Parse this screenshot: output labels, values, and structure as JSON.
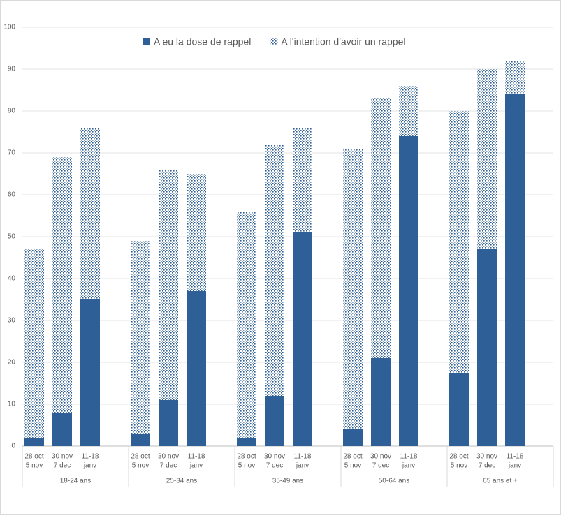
{
  "chart_data": {
    "type": "stacked-bar",
    "groups": [
      "18-24 ans",
      "25-34 ans",
      "35-49 ans",
      "50-64 ans",
      "65 ans et +"
    ],
    "categories": [
      [
        "28 oct",
        "5 nov"
      ],
      [
        "30 nov",
        "7 dec"
      ],
      [
        "11-18",
        "janv"
      ],
      [
        "28 oct",
        "5 nov"
      ],
      [
        "30 nov",
        "7 dec"
      ],
      [
        "11-18",
        "janv"
      ],
      [
        "28 oct",
        "5 nov"
      ],
      [
        "30 nov",
        "7 dec"
      ],
      [
        "11-18",
        "janv"
      ],
      [
        "28 oct",
        "5 nov"
      ],
      [
        "30 nov",
        "7 dec"
      ],
      [
        "11-18",
        "janv"
      ],
      [
        "28 oct",
        "5 nov"
      ],
      [
        "30 nov",
        "7 dec"
      ],
      [
        "11-18",
        "janv"
      ]
    ],
    "series": [
      {
        "name": "A eu la dose de rappel",
        "color": "#2e5f96",
        "pattern": "solid",
        "values": [
          2,
          8,
          35,
          3,
          11,
          37,
          2,
          12,
          51,
          4,
          21,
          74,
          17.5,
          47,
          84
        ]
      },
      {
        "name": "A l'intention d'avoir un rappel",
        "color": "#2e5f96",
        "pattern": "dotted",
        "values": [
          45,
          61,
          41,
          46,
          55,
          28,
          54,
          60,
          25,
          67,
          62,
          12,
          62.5,
          43,
          8
        ]
      }
    ],
    "ylim": [
      0,
      100
    ],
    "yticks": [
      0,
      10,
      20,
      30,
      40,
      50,
      60,
      70,
      80,
      90,
      100
    ],
    "grid": true,
    "legend": "top"
  }
}
